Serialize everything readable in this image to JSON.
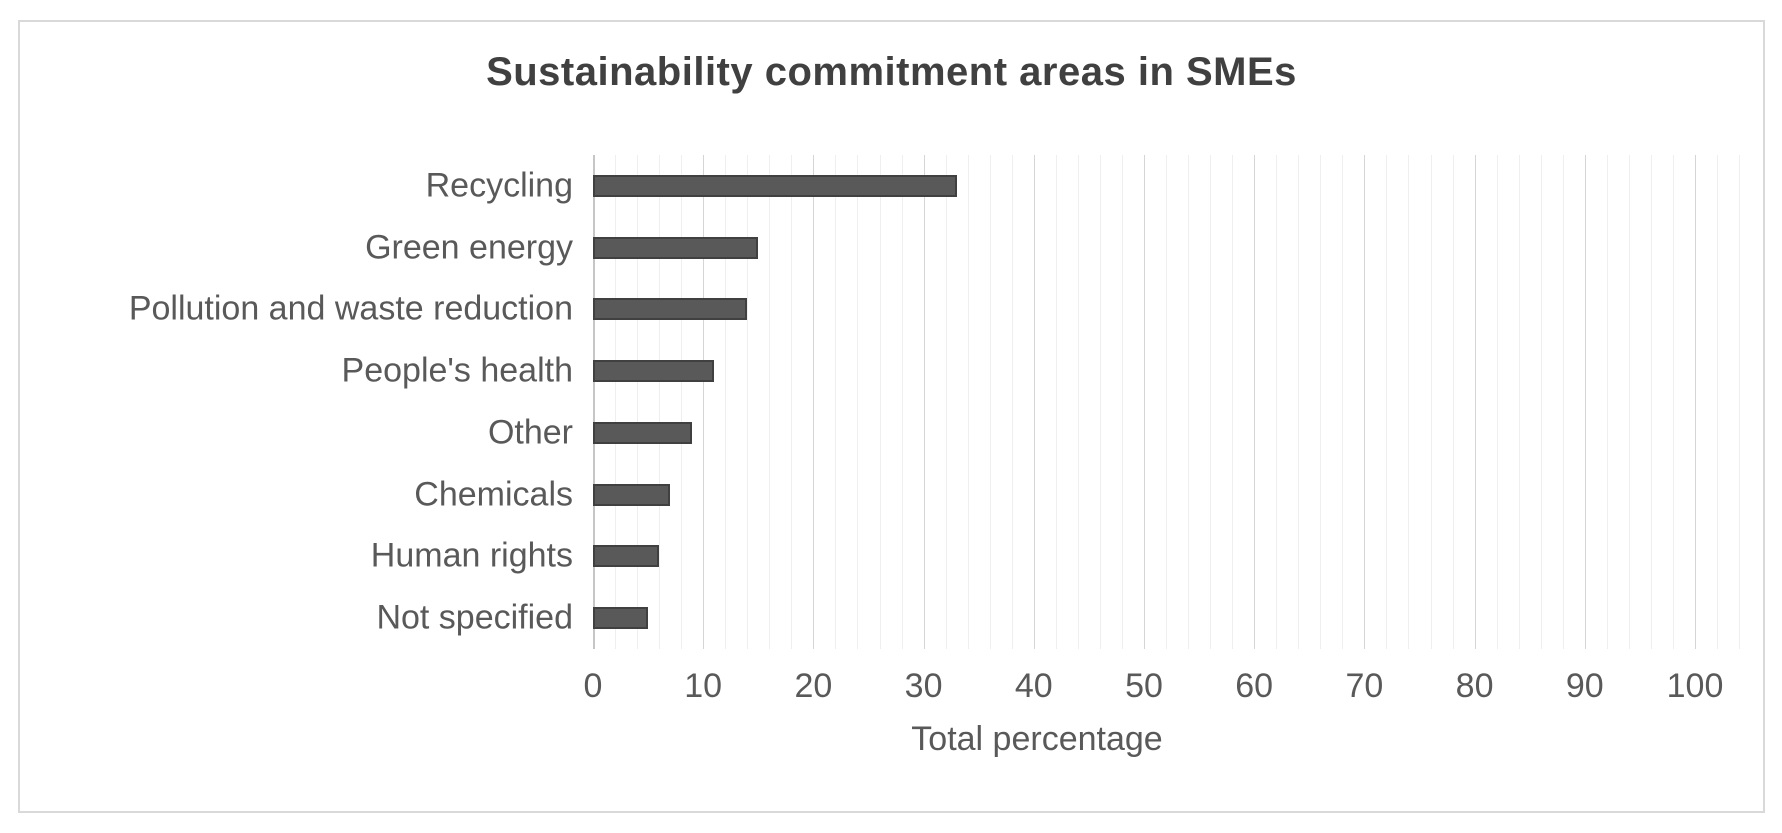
{
  "chart_data": {
    "type": "bar",
    "orientation": "horizontal",
    "title": "Sustainability commitment areas in SMEs",
    "xlabel": "Total percentage",
    "ylabel": "",
    "categories": [
      "Recycling",
      "Green energy",
      "Pollution and waste reduction",
      "People's health",
      "Other",
      "Chemicals",
      "Human rights",
      "Not specified"
    ],
    "values": [
      33,
      15,
      14,
      11,
      9,
      7,
      6,
      5
    ],
    "xlim": [
      0,
      106
    ],
    "xticks": [
      0,
      10,
      20,
      30,
      40,
      50,
      60,
      70,
      80,
      90,
      100
    ],
    "minor_gridline_unit": 2,
    "major_gridline_unit": 10,
    "grid": "on",
    "legend": "none",
    "colors": {
      "bar_fill": "#595959",
      "bar_border": "#404040",
      "title_text": "#404040",
      "label_text": "#595959",
      "minor_gridline": "#efefef",
      "major_gridline": "#d5d5d5",
      "axis_line": "#c6c6c6",
      "figure_border": "#d9d9d9",
      "background": "#ffffff"
    }
  }
}
